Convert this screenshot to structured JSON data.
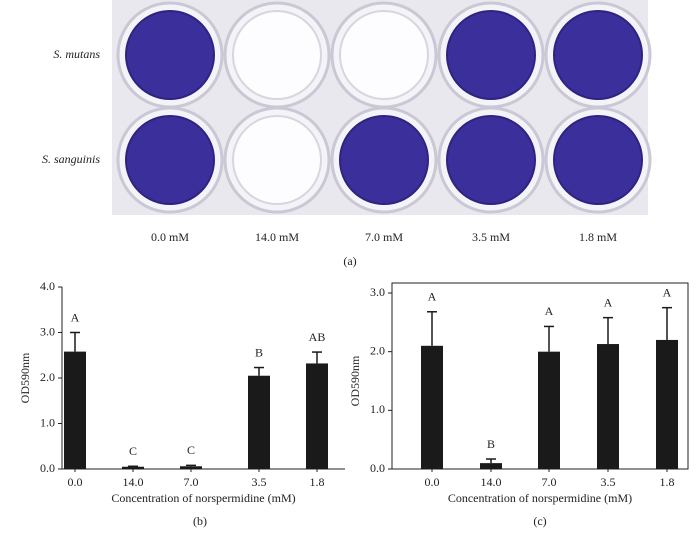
{
  "figure": {
    "row_labels": [
      "S. mutans",
      "S. sanguinis"
    ],
    "column_labels": [
      "0.0 mM",
      "14.0 mM",
      "7.0 mM",
      "3.5 mM",
      "1.8 mM"
    ],
    "caption": "(a)"
  },
  "chart_data": [
    {
      "type": "bar",
      "caption": "(b)",
      "xlabel": "Concentration of norspermidine (mM)",
      "ylabel": "OD590nm",
      "categories": [
        "0.0",
        "14.0",
        "7.0",
        "3.5",
        "1.8"
      ],
      "values": [
        2.58,
        0.05,
        0.06,
        2.05,
        2.32
      ],
      "errors": [
        0.42,
        0.01,
        0.02,
        0.18,
        0.25
      ],
      "annotations": [
        "A",
        "C",
        "C",
        "B",
        "AB"
      ],
      "color": "#1a1a1a",
      "frame": false,
      "ylim": [
        0,
        4
      ],
      "yticks": [
        {
          "value": 0,
          "label": "0.0"
        },
        {
          "value": 1,
          "label": "1.0"
        },
        {
          "value": 2,
          "label": "2.0"
        },
        {
          "value": 3,
          "label": "3.0"
        },
        {
          "value": 4,
          "label": "4.0"
        }
      ]
    },
    {
      "type": "bar",
      "caption": "(c)",
      "xlabel": "Concentration of norspermidine (mM)",
      "ylabel": "OD590nm",
      "categories": [
        "0.0",
        "14.0",
        "7.0",
        "3.5",
        "1.8"
      ],
      "values": [
        2.1,
        0.1,
        2.0,
        2.13,
        2.2
      ],
      "errors": [
        0.58,
        0.07,
        0.43,
        0.45,
        0.55
      ],
      "annotations": [
        "A",
        "B",
        "A",
        "A",
        "A"
      ],
      "color": "#1a1a1a",
      "frame": true,
      "ylim": [
        0,
        3
      ],
      "yticks": [
        {
          "value": 0,
          "label": "0.0"
        },
        {
          "value": 1,
          "label": "1.0"
        },
        {
          "value": 2,
          "label": "2.0"
        },
        {
          "value": 3,
          "label": "3.0"
        }
      ]
    }
  ]
}
